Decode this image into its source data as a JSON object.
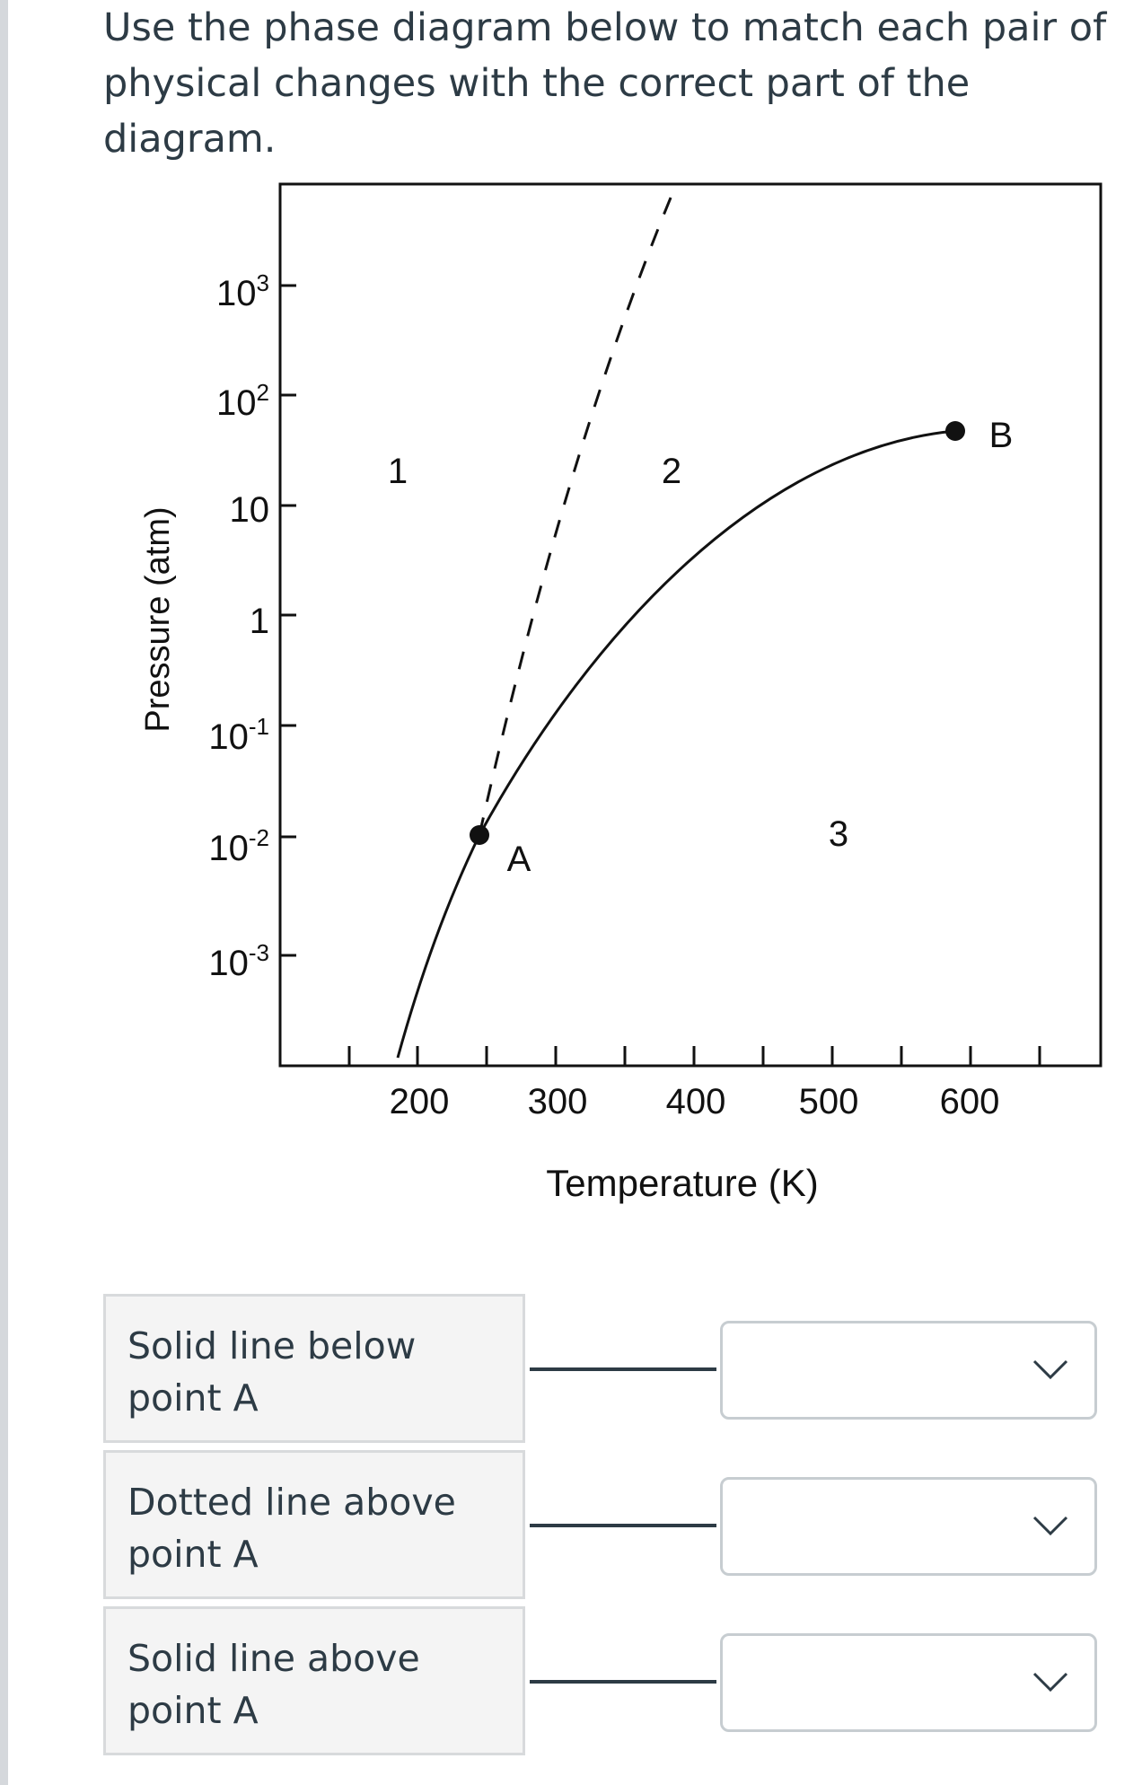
{
  "question": {
    "line1": "Use the phase diagram below to match each pair of",
    "line2": "physical changes with the correct part of the diagram."
  },
  "diagram": {
    "y_axis_label": "Pressure (atm)",
    "x_axis_label": "Temperature (K)",
    "y_ticks": [
      {
        "base": "10",
        "exp": "3"
      },
      {
        "base": "10",
        "exp": "2"
      },
      {
        "base": "10",
        "exp": ""
      },
      {
        "base": "1",
        "exp": ""
      },
      {
        "base": "10",
        "exp": "-1"
      },
      {
        "base": "10",
        "exp": "-2"
      },
      {
        "base": "10",
        "exp": "-3"
      }
    ],
    "x_ticks": [
      "200",
      "300",
      "400",
      "500",
      "600"
    ],
    "regions": {
      "r1": "1",
      "r2": "2",
      "r3": "3"
    },
    "points": {
      "a": "A",
      "b": "B"
    }
  },
  "matches": [
    {
      "prompt_line1": "Solid line below",
      "prompt_line2": "point A",
      "selected": ""
    },
    {
      "prompt_line1": "Dotted line above",
      "prompt_line2": "point A",
      "selected": ""
    },
    {
      "prompt_line1": "Solid line above",
      "prompt_line2": "point A",
      "selected": ""
    }
  ],
  "icons": {
    "dropdown": "chevron-down-icon"
  }
}
